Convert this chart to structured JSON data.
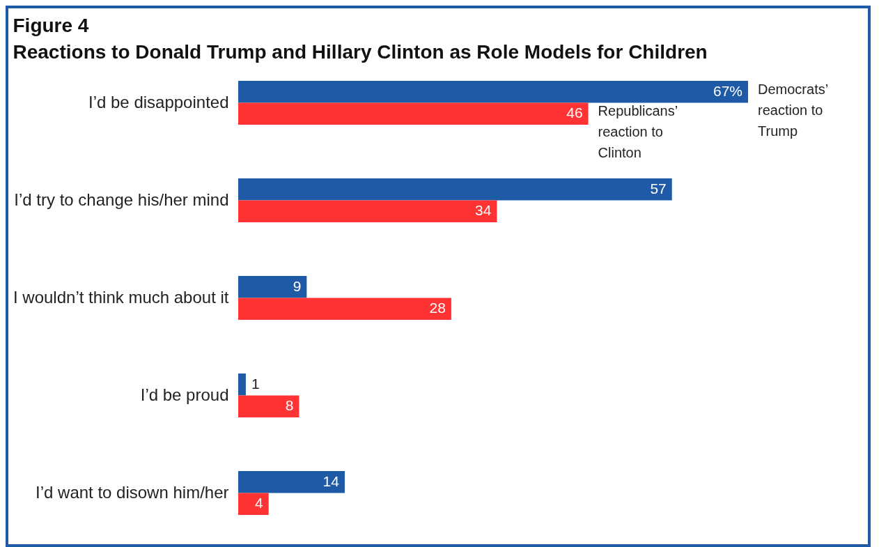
{
  "chart_data": {
    "type": "bar",
    "orientation": "horizontal",
    "title": "Figure 4",
    "subtitle": "Reactions to Donald Trump and Hillary Clinton as Role Models for Children",
    "categories": [
      "I’d be disappointed",
      "I’d try to change his/her mind",
      "I wouldn’t think much about it",
      "I’d be proud",
      "I’d want to disown him/her"
    ],
    "series": [
      {
        "name": "Democrats’ reaction to Trump",
        "color": "#1f5aa6",
        "values": [
          67,
          57,
          9,
          1,
          14
        ],
        "value_labels": [
          "67%",
          "57",
          "9",
          "1",
          "14"
        ]
      },
      {
        "name": "Republicans’ reaction to Clinton",
        "color": "#ff3333",
        "values": [
          46,
          34,
          28,
          8,
          4
        ],
        "value_labels": [
          "46",
          "34",
          "28",
          "8",
          "4"
        ]
      }
    ],
    "legend": false
  }
}
